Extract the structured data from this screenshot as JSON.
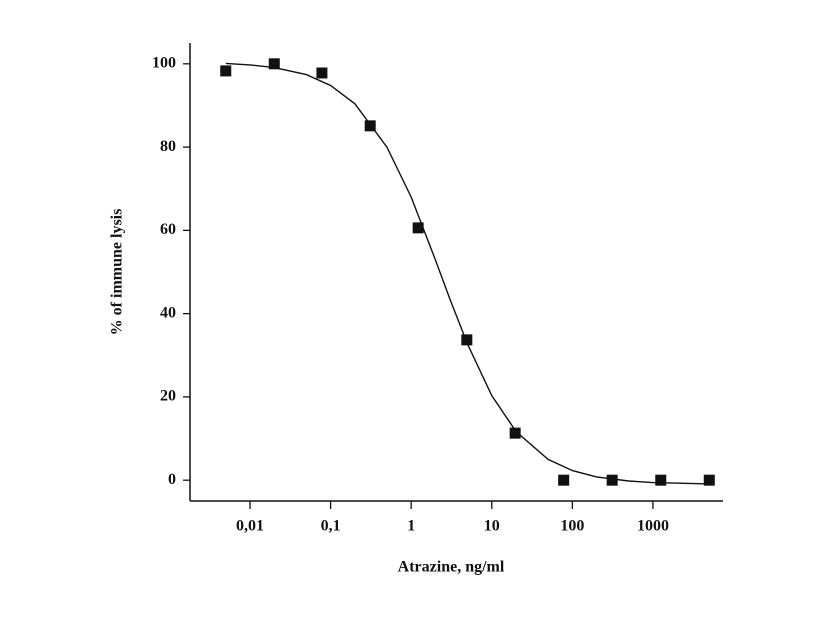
{
  "chart_data": {
    "type": "scatter",
    "x_label": "Atrazine, ng/ml",
    "y_label": "% of immune lysis",
    "x": [
      0.005,
      0.02,
      0.078,
      0.31,
      1.22,
      4.9,
      19.5,
      78,
      312,
      1250,
      5000
    ],
    "values": [
      98.3,
      100,
      97.8,
      85.1,
      60.6,
      33.7,
      11.3,
      0,
      0,
      0,
      0
    ],
    "color": "#111111",
    "curve": {
      "x": [
        0.005,
        0.01,
        0.02,
        0.05,
        0.1,
        0.2,
        0.5,
        1,
        2,
        3,
        5,
        10,
        20,
        50,
        100,
        200,
        500,
        1000,
        5000
      ],
      "values": [
        100.1,
        99.75,
        99.1,
        97.4,
        94.8,
        90.4,
        80.0,
        68.0,
        52.9,
        43.7,
        32.7,
        20.3,
        11.7,
        5.0,
        2.3,
        0.8,
        -0.2,
        -0.57,
        -0.9
      ]
    },
    "xscale": "log",
    "xlim": [
      0.0018,
      7400
    ],
    "ylim": [
      -5,
      105
    ],
    "xticks": [
      {
        "value": 0.01,
        "label": "0,01"
      },
      {
        "value": 0.1,
        "label": "0,1"
      },
      1,
      10,
      100,
      1000
    ],
    "yticks": [
      0,
      20,
      40,
      60,
      80,
      100
    ]
  }
}
